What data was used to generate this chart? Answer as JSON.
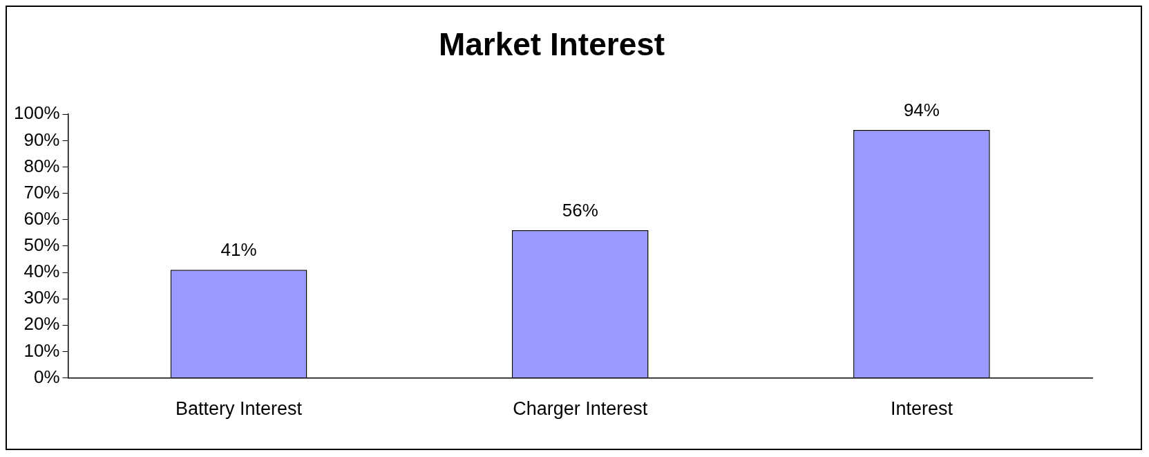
{
  "chart_data": {
    "type": "bar",
    "title": "Market Interest",
    "categories": [
      "Battery Interest",
      "Charger Interest",
      "Interest"
    ],
    "values": [
      41,
      56,
      94
    ],
    "value_labels": [
      "41%",
      "56%",
      "94%"
    ],
    "color": "#9999ff",
    "ylim": [
      0,
      100
    ],
    "yticks": [
      {
        "value": 0,
        "label": "0%"
      },
      {
        "value": 10,
        "label": "10%"
      },
      {
        "value": 20,
        "label": "20%"
      },
      {
        "value": 30,
        "label": "30%"
      },
      {
        "value": 40,
        "label": "40%"
      },
      {
        "value": 50,
        "label": "50%"
      },
      {
        "value": 60,
        "label": "60%"
      },
      {
        "value": 70,
        "label": "70%"
      },
      {
        "value": 80,
        "label": "80%"
      },
      {
        "value": 90,
        "label": "90%"
      },
      {
        "value": 100,
        "label": "100%"
      }
    ],
    "grid": false,
    "legend": false
  }
}
